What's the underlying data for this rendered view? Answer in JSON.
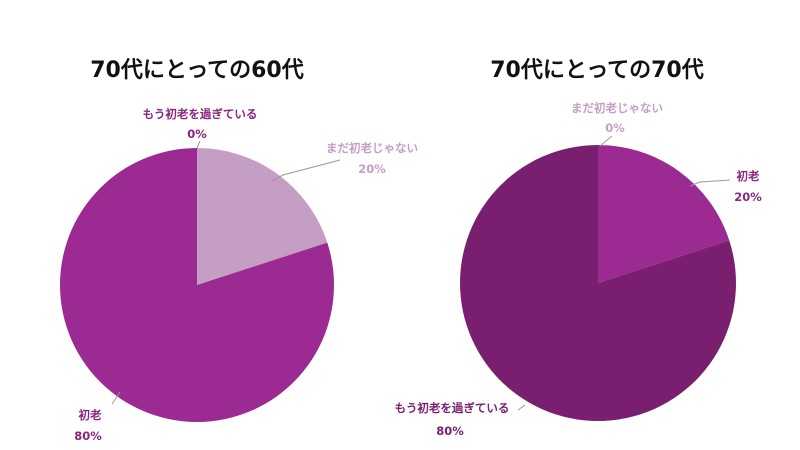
{
  "colors": {
    "background": "#ffffff",
    "title": "#111111"
  },
  "chart_data": [
    {
      "type": "pie",
      "title": "70代にとっての60代",
      "slices": [
        {
          "label": "まだ初老じゃない",
          "value": 20,
          "display": "20%",
          "color": "#c59ec4",
          "label_color": "#c59ec4"
        },
        {
          "label": "初老",
          "value": 80,
          "display": "80%",
          "color": "#9b2a92",
          "label_color": "#8a2482"
        },
        {
          "label": "もう初老を過ぎている",
          "value": 0,
          "display": "0%",
          "color": "#7a1f6f",
          "label_color": "#8a2482"
        }
      ]
    },
    {
      "type": "pie",
      "title": "70代にとっての70代",
      "slices": [
        {
          "label": "まだ初老じゃない",
          "value": 0,
          "display": "0%",
          "color": "#c59ec4",
          "label_color": "#c59ec4"
        },
        {
          "label": "初老",
          "value": 20,
          "display": "20%",
          "color": "#9b2a92",
          "label_color": "#8a2482"
        },
        {
          "label": "もう初老を過ぎている",
          "value": 80,
          "display": "80%",
          "color": "#7a1f6f",
          "label_color": "#7a1f6f"
        }
      ]
    }
  ]
}
